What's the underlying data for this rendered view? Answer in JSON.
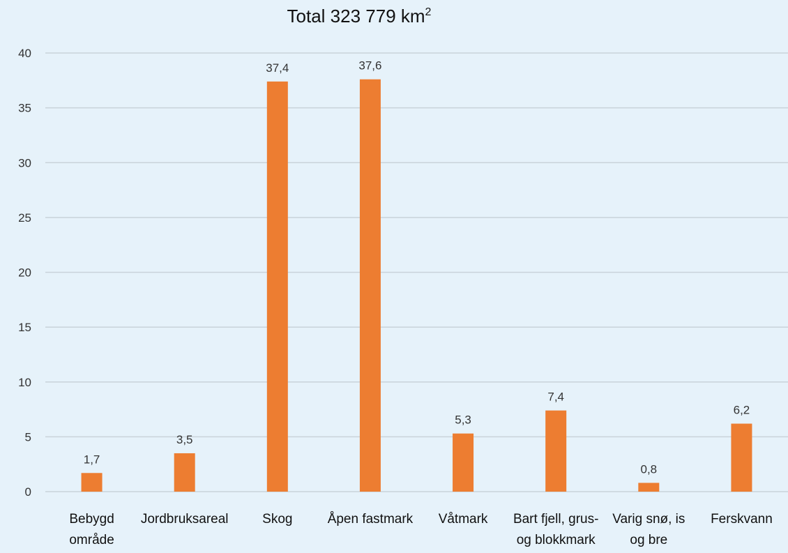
{
  "chart_data": {
    "type": "bar",
    "title": "Total 323 779 km",
    "title_superscript": "2",
    "categories": [
      [
        "Bebygd",
        "område"
      ],
      [
        "Jordbruksareal"
      ],
      [
        "Skog"
      ],
      [
        "Åpen fastmark"
      ],
      [
        "Våtmark"
      ],
      [
        "Bart fjell, grus-",
        "og blokkmark"
      ],
      [
        "Varig snø, is",
        "og bre"
      ],
      [
        "Ferskvann"
      ]
    ],
    "values": [
      1.7,
      3.5,
      37.4,
      37.6,
      5.3,
      7.4,
      0.8,
      6.2
    ],
    "data_labels": [
      "1,7",
      "3,5",
      "37,4",
      "37,6",
      "5,3",
      "7,4",
      "0,8",
      "6,2"
    ],
    "y_ticks": [
      0,
      5,
      10,
      15,
      20,
      25,
      30,
      35,
      40
    ],
    "ylim": [
      0,
      40
    ],
    "grid": true,
    "bar_color": "#ed7d31",
    "gridline_color": "#c9d3da",
    "background_color": "#e6f2fa"
  }
}
